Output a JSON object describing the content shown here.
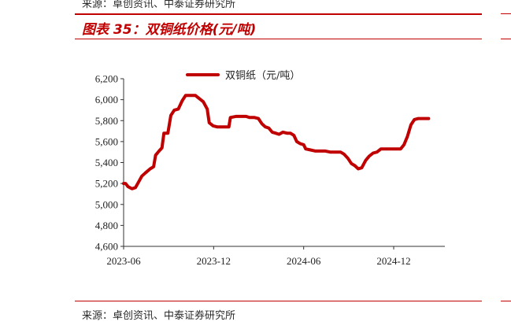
{
  "header": {
    "source_top": "来源：卓创资讯、中泰证券研究所",
    "title": "图表 35：双铜纸价格(元/吨)"
  },
  "footer": {
    "source_bottom": "来源：卓创资讯、中泰证券研究所"
  },
  "colors": {
    "accent": "#c00000",
    "series": "#c00000"
  },
  "chart_data": {
    "type": "line",
    "title": "",
    "xlabel": "",
    "ylabel": "",
    "ylim": [
      4600,
      6200
    ],
    "yticks": [
      "4,600",
      "4,800",
      "5,000",
      "5,200",
      "5,400",
      "5,600",
      "5,800",
      "6,000",
      "6,200"
    ],
    "xlim": [
      "2023-06-01",
      "2025-03-15"
    ],
    "xticks": [
      {
        "label": "2023-06",
        "date": "2023-06-01"
      },
      {
        "label": "2023-12",
        "date": "2023-12-01"
      },
      {
        "label": "2024-06",
        "date": "2024-06-01"
      },
      {
        "label": "2024-12",
        "date": "2024-12-01"
      }
    ],
    "grid": false,
    "legend_position": "top-center",
    "series": [
      {
        "name": "双铜纸（元/吨）",
        "points": [
          [
            "2023-06-01",
            5200
          ],
          [
            "2023-06-05",
            5200
          ],
          [
            "2023-06-10",
            5170
          ],
          [
            "2023-06-18",
            5150
          ],
          [
            "2023-06-25",
            5160
          ],
          [
            "2023-07-01",
            5210
          ],
          [
            "2023-07-08",
            5270
          ],
          [
            "2023-07-15",
            5300
          ],
          [
            "2023-07-25",
            5340
          ],
          [
            "2023-08-01",
            5360
          ],
          [
            "2023-08-05",
            5470
          ],
          [
            "2023-08-12",
            5510
          ],
          [
            "2023-08-18",
            5540
          ],
          [
            "2023-08-22",
            5680
          ],
          [
            "2023-08-30",
            5680
          ],
          [
            "2023-09-05",
            5850
          ],
          [
            "2023-09-12",
            5900
          ],
          [
            "2023-09-20",
            5910
          ],
          [
            "2023-09-28",
            5990
          ],
          [
            "2023-10-05",
            6040
          ],
          [
            "2023-10-15",
            6040
          ],
          [
            "2023-10-25",
            6040
          ],
          [
            "2023-11-02",
            6010
          ],
          [
            "2023-11-10",
            5980
          ],
          [
            "2023-11-18",
            5910
          ],
          [
            "2023-11-22",
            5780
          ],
          [
            "2023-11-30",
            5750
          ],
          [
            "2023-12-08",
            5740
          ],
          [
            "2023-12-15",
            5740
          ],
          [
            "2023-12-25",
            5740
          ],
          [
            "2024-01-01",
            5740
          ],
          [
            "2024-01-04",
            5830
          ],
          [
            "2024-01-15",
            5840
          ],
          [
            "2024-01-25",
            5840
          ],
          [
            "2024-02-05",
            5840
          ],
          [
            "2024-02-12",
            5830
          ],
          [
            "2024-02-22",
            5830
          ],
          [
            "2024-03-01",
            5820
          ],
          [
            "2024-03-08",
            5770
          ],
          [
            "2024-03-15",
            5740
          ],
          [
            "2024-03-22",
            5730
          ],
          [
            "2024-03-29",
            5690
          ],
          [
            "2024-04-05",
            5680
          ],
          [
            "2024-04-12",
            5670
          ],
          [
            "2024-04-20",
            5690
          ],
          [
            "2024-04-28",
            5680
          ],
          [
            "2024-05-05",
            5680
          ],
          [
            "2024-05-12",
            5660
          ],
          [
            "2024-05-18",
            5600
          ],
          [
            "2024-05-25",
            5580
          ],
          [
            "2024-06-01",
            5570
          ],
          [
            "2024-06-05",
            5530
          ],
          [
            "2024-06-15",
            5520
          ],
          [
            "2024-06-25",
            5510
          ],
          [
            "2024-07-05",
            5510
          ],
          [
            "2024-07-15",
            5510
          ],
          [
            "2024-07-25",
            5500
          ],
          [
            "2024-08-05",
            5500
          ],
          [
            "2024-08-15",
            5500
          ],
          [
            "2024-08-22",
            5480
          ],
          [
            "2024-08-30",
            5440
          ],
          [
            "2024-09-06",
            5390
          ],
          [
            "2024-09-13",
            5370
          ],
          [
            "2024-09-20",
            5340
          ],
          [
            "2024-09-27",
            5350
          ],
          [
            "2024-10-05",
            5420
          ],
          [
            "2024-10-12",
            5460
          ],
          [
            "2024-10-20",
            5490
          ],
          [
            "2024-10-28",
            5500
          ],
          [
            "2024-11-05",
            5530
          ],
          [
            "2024-11-15",
            5530
          ],
          [
            "2024-11-25",
            5530
          ],
          [
            "2024-12-05",
            5530
          ],
          [
            "2024-12-15",
            5530
          ],
          [
            "2024-12-22",
            5570
          ],
          [
            "2024-12-29",
            5650
          ],
          [
            "2025-01-05",
            5760
          ],
          [
            "2025-01-12",
            5810
          ],
          [
            "2025-01-20",
            5820
          ],
          [
            "2025-01-28",
            5820
          ],
          [
            "2025-02-10",
            5820
          ]
        ]
      }
    ]
  }
}
